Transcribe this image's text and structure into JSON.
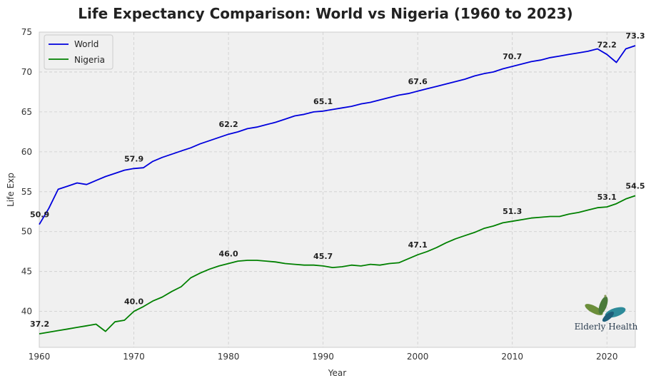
{
  "chart_data": {
    "type": "line",
    "title": "Life Expectancy Comparison: World vs Nigeria (1960 to 2023)",
    "xlabel": "Year",
    "ylabel": "Life Exp",
    "xlim": [
      1960,
      2023
    ],
    "ylim": [
      35.5,
      75
    ],
    "xticks": [
      1960,
      1970,
      1980,
      1990,
      2000,
      2010,
      2020
    ],
    "yticks": [
      40,
      45,
      50,
      55,
      60,
      65,
      70,
      75
    ],
    "grid": true,
    "legend_position": "top-left",
    "x": [
      1960,
      1961,
      1962,
      1963,
      1964,
      1965,
      1966,
      1967,
      1968,
      1969,
      1970,
      1971,
      1972,
      1973,
      1974,
      1975,
      1976,
      1977,
      1978,
      1979,
      1980,
      1981,
      1982,
      1983,
      1984,
      1985,
      1986,
      1987,
      1988,
      1989,
      1990,
      1991,
      1992,
      1993,
      1994,
      1995,
      1996,
      1997,
      1998,
      1999,
      2000,
      2001,
      2002,
      2003,
      2004,
      2005,
      2006,
      2007,
      2008,
      2009,
      2010,
      2011,
      2012,
      2013,
      2014,
      2015,
      2016,
      2017,
      2018,
      2019,
      2020,
      2021,
      2022,
      2023
    ],
    "series": [
      {
        "name": "World",
        "color": "#0000dd",
        "values": [
          50.9,
          52.9,
          55.3,
          55.7,
          56.1,
          55.9,
          56.4,
          56.9,
          57.3,
          57.7,
          57.9,
          58.0,
          58.8,
          59.3,
          59.7,
          60.1,
          60.5,
          61.0,
          61.4,
          61.8,
          62.2,
          62.5,
          62.9,
          63.1,
          63.4,
          63.7,
          64.1,
          64.5,
          64.7,
          65.0,
          65.1,
          65.3,
          65.5,
          65.7,
          66.0,
          66.2,
          66.5,
          66.8,
          67.1,
          67.3,
          67.6,
          67.9,
          68.2,
          68.5,
          68.8,
          69.1,
          69.5,
          69.8,
          70.0,
          70.4,
          70.7,
          71.0,
          71.3,
          71.5,
          71.8,
          72.0,
          72.2,
          72.4,
          72.6,
          72.9,
          72.2,
          71.2,
          72.9,
          73.3
        ]
      },
      {
        "name": "Nigeria",
        "color": "#008000",
        "values": [
          37.2,
          37.4,
          37.6,
          37.8,
          38.0,
          38.2,
          38.4,
          37.5,
          38.7,
          38.9,
          40.0,
          40.6,
          41.3,
          41.8,
          42.5,
          43.1,
          44.2,
          44.8,
          45.3,
          45.7,
          46.0,
          46.3,
          46.4,
          46.4,
          46.3,
          46.2,
          46.0,
          45.9,
          45.8,
          45.8,
          45.7,
          45.5,
          45.6,
          45.8,
          45.7,
          45.9,
          45.8,
          46.0,
          46.1,
          46.6,
          47.1,
          47.5,
          48.0,
          48.6,
          49.1,
          49.5,
          49.9,
          50.4,
          50.7,
          51.1,
          51.3,
          51.5,
          51.7,
          51.8,
          51.9,
          51.9,
          52.2,
          52.4,
          52.7,
          53.0,
          53.1,
          53.5,
          54.1,
          54.5
        ]
      }
    ],
    "annotations": [
      {
        "series": "World",
        "x": 1960,
        "y": 50.9,
        "text": "50.9"
      },
      {
        "series": "World",
        "x": 1970,
        "y": 57.9,
        "text": "57.9"
      },
      {
        "series": "World",
        "x": 1980,
        "y": 62.2,
        "text": "62.2"
      },
      {
        "series": "World",
        "x": 1990,
        "y": 65.1,
        "text": "65.1"
      },
      {
        "series": "World",
        "x": 2000,
        "y": 67.6,
        "text": "67.6"
      },
      {
        "series": "World",
        "x": 2010,
        "y": 70.7,
        "text": "70.7"
      },
      {
        "series": "World",
        "x": 2020,
        "y": 72.2,
        "text": "72.2"
      },
      {
        "series": "World",
        "x": 2023,
        "y": 73.3,
        "text": "73.3"
      },
      {
        "series": "Nigeria",
        "x": 1960,
        "y": 37.2,
        "text": "37.2"
      },
      {
        "series": "Nigeria",
        "x": 1970,
        "y": 40.0,
        "text": "40.0"
      },
      {
        "series": "Nigeria",
        "x": 1980,
        "y": 46.0,
        "text": "46.0"
      },
      {
        "series": "Nigeria",
        "x": 1990,
        "y": 45.7,
        "text": "45.7"
      },
      {
        "series": "Nigeria",
        "x": 2000,
        "y": 47.1,
        "text": "47.1"
      },
      {
        "series": "Nigeria",
        "x": 2010,
        "y": 51.3,
        "text": "51.3"
      },
      {
        "series": "Nigeria",
        "x": 2020,
        "y": 53.1,
        "text": "53.1"
      },
      {
        "series": "Nigeria",
        "x": 2023,
        "y": 54.5,
        "text": "54.5"
      }
    ]
  },
  "logo": {
    "text": "Elderly Health",
    "colors": [
      "#6b8e3a",
      "#2e8b9a",
      "#1e5f7a"
    ]
  },
  "style": {
    "plot_background": "#f0f0f0",
    "grid_color": "#cccccc"
  }
}
